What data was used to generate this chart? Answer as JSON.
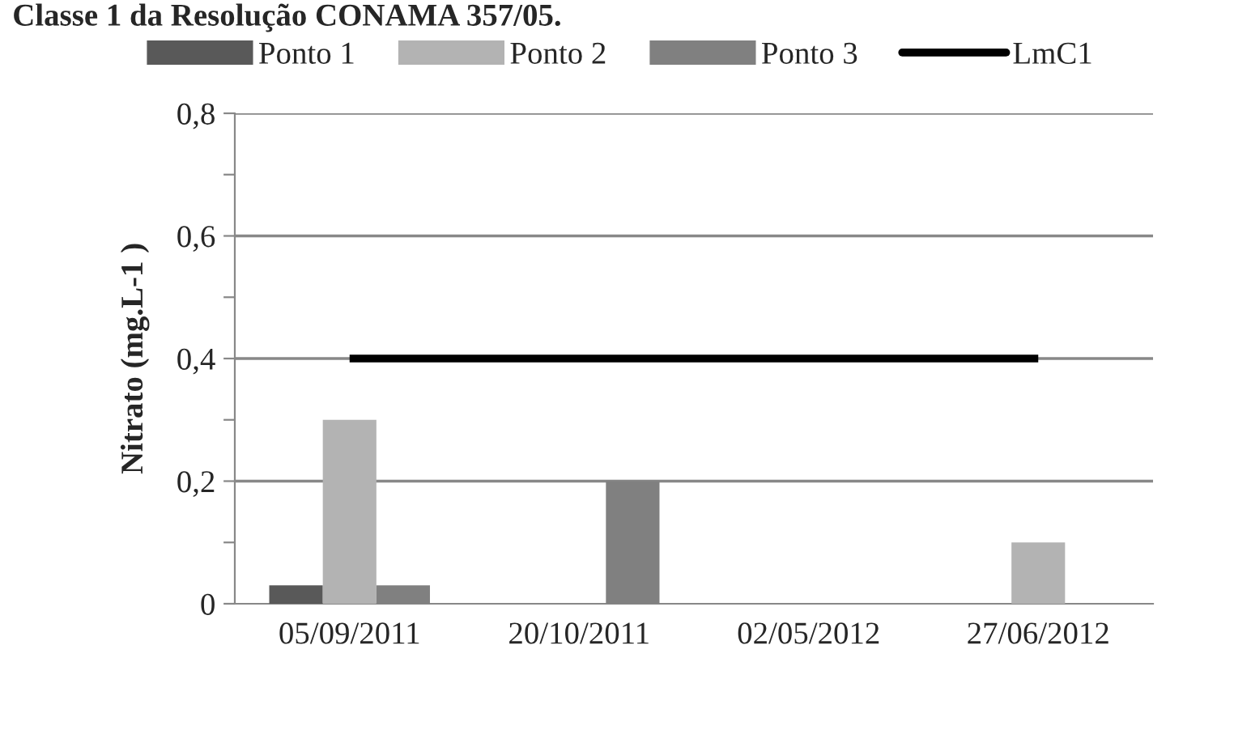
{
  "chart_data": {
    "type": "bar",
    "annotations": [
      "Classe 1 da Resolução CONAMA 357/05."
    ],
    "ylabel": "Nitrato (mg.L-1 )",
    "categories": [
      "05/09/2011",
      "20/10/2011",
      "02/05/2012",
      "27/06/2012"
    ],
    "series": [
      {
        "name": "Ponto 1",
        "color": "#595959",
        "values": [
          0.03,
          null,
          null,
          null
        ]
      },
      {
        "name": "Ponto 2",
        "color": "#b3b3b3",
        "values": [
          0.3,
          null,
          null,
          0.1
        ]
      },
      {
        "name": "Ponto 3",
        "color": "#808080",
        "values": [
          0.03,
          0.2,
          null,
          null
        ]
      },
      {
        "name": "LmC1",
        "type": "line",
        "color": "#000000",
        "values": [
          0.4,
          0.4,
          0.4,
          0.4
        ]
      }
    ],
    "ylim": [
      0,
      0.8
    ],
    "yticks": [
      0,
      {
        "value": 0.1,
        "label": null
      },
      {
        "value": 0.2,
        "label": "0,2"
      },
      {
        "value": 0.3,
        "label": null
      },
      {
        "value": 0.4,
        "label": "0,4"
      },
      {
        "value": 0.5,
        "label": null
      },
      {
        "value": 0.6,
        "label": "0,6"
      },
      {
        "value": 0.7,
        "label": null
      },
      {
        "value": 0.8,
        "label": "0,8"
      }
    ],
    "grid": "y",
    "legend": "top"
  }
}
